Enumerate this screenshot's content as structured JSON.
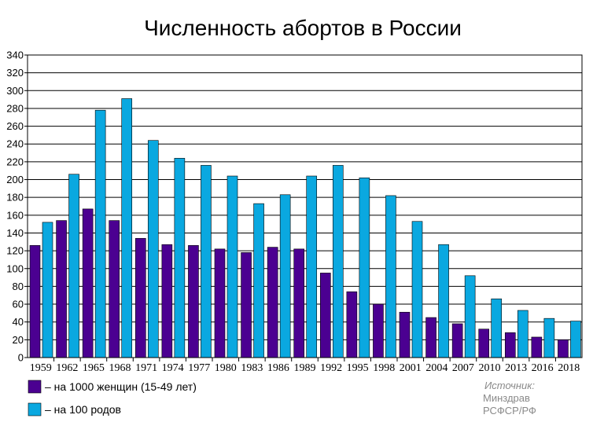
{
  "chart_data": {
    "type": "bar",
    "title": "Численность абортов в России",
    "xlabel": "",
    "ylabel": "",
    "ylim": [
      0,
      340
    ],
    "ytick_step": 20,
    "grid": true,
    "legend_position": "bottom-left",
    "categories": [
      "1959",
      "1962",
      "1965",
      "1968",
      "1971",
      "1974",
      "1977",
      "1980",
      "1983",
      "1986",
      "1989",
      "1992",
      "1995",
      "1998",
      "2001",
      "2004",
      "2007",
      "2010",
      "2013",
      "2016",
      "2018"
    ],
    "series": [
      {
        "name": "– на 1000 женщин (15-49 лет)",
        "color": "#4b0091",
        "values": [
          126,
          154,
          167,
          154,
          134,
          127,
          126,
          122,
          118,
          124,
          122,
          95,
          74,
          60,
          51,
          45,
          38,
          32,
          28,
          23,
          20
        ]
      },
      {
        "name": "– на 100 родов",
        "color": "#0aa8e0",
        "values": [
          152,
          206,
          278,
          291,
          244,
          224,
          216,
          204,
          173,
          183,
          204,
          216,
          202,
          182,
          153,
          127,
          92,
          66,
          53,
          44,
          41
        ]
      }
    ],
    "source": {
      "label": "Источник:",
      "lines": [
        "Минздрав",
        "РСФСР/РФ"
      ]
    }
  }
}
